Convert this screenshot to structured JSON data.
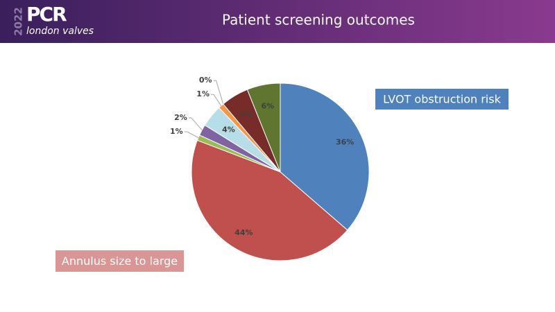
{
  "logo": {
    "year": "2022",
    "brand": "PCR",
    "tagline": "london valves"
  },
  "chart_data": {
    "type": "pie",
    "title": "Patient screening outcomes",
    "categories": [
      "LVOT obstruction risk",
      "Annulus size to large",
      null,
      null,
      null,
      null,
      null,
      null,
      null
    ],
    "values": [
      36,
      44,
      1,
      2,
      4,
      1,
      0,
      5,
      6
    ],
    "value_labels": [
      "36%",
      "44%",
      "1%",
      "2%",
      "4%",
      "1%",
      "0%",
      "5%",
      "6%"
    ],
    "colors": [
      "#4f81bd",
      "#c0504d",
      "#9bbb59",
      "#8064a2",
      "#b7dee8",
      "#f79646",
      "#1f3864",
      "#772c2a",
      "#5f7530"
    ]
  }
}
